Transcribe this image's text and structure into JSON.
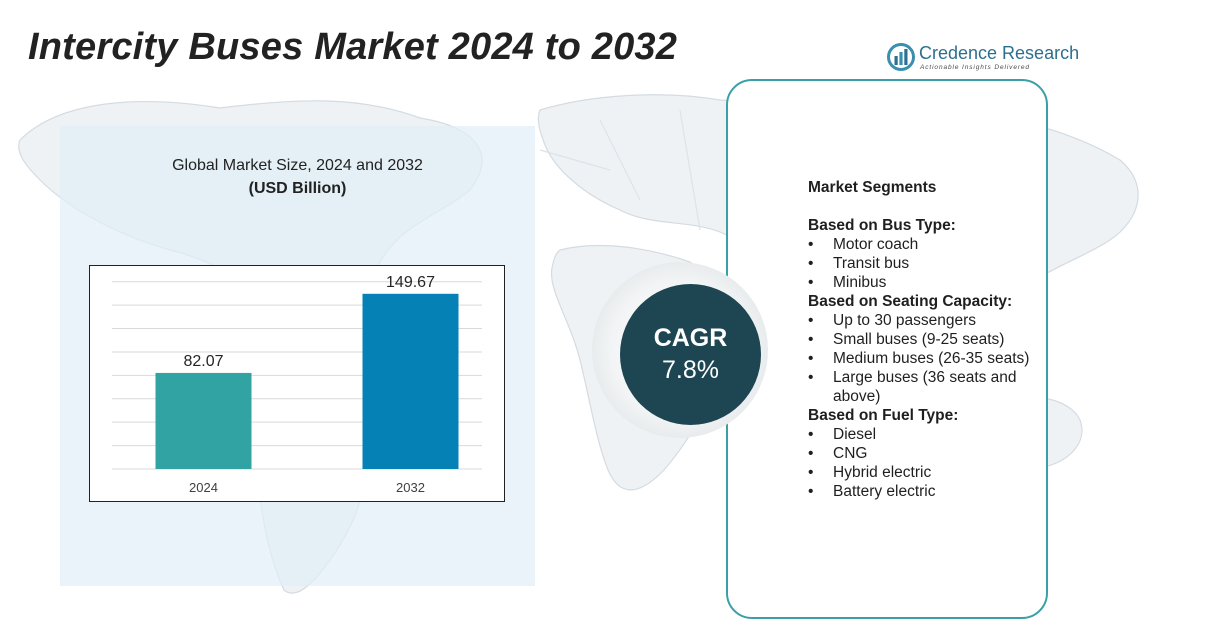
{
  "page": {
    "title": "Intercity Buses Market 2024 to 2032"
  },
  "logo": {
    "name": "Credence Research",
    "tagline": "Actionable Insights Delivered",
    "icon": "bar-chart-circle-icon"
  },
  "chart": {
    "title": "Global Market Size, 2024 and 2032",
    "unit": "(USD Billion)"
  },
  "chart_data": {
    "type": "bar",
    "categories": [
      "2024",
      "2032"
    ],
    "values": [
      82.07,
      149.67
    ],
    "data_labels": [
      "82.07",
      "149.67"
    ],
    "colors": [
      "#32a3a3",
      "#0581b5"
    ],
    "title": "Global Market Size, 2024 and 2032",
    "ylabel": "(USD Billion)",
    "ylim": [
      0,
      170
    ],
    "grid": true
  },
  "cagr": {
    "label": "CAGR",
    "value": "7.8%"
  },
  "segments": {
    "heading": "Market Segments",
    "groups": [
      {
        "title": "Based on Bus Type:",
        "items": [
          "Motor coach",
          "Transit bus",
          "Minibus"
        ]
      },
      {
        "title": "Based on Seating Capacity:",
        "items": [
          "Up to 30 passengers",
          "Small buses (9-25 seats)",
          "Medium buses (26-35 seats)",
          "Large buses (36 seats and above)"
        ]
      },
      {
        "title": "Based on Fuel Type:",
        "items": [
          "Diesel",
          "CNG",
          "Hybrid electric",
          "Battery electric"
        ]
      }
    ]
  },
  "colors": {
    "accent_teal": "#3aa0a8",
    "cagr_dark": "#1d4652",
    "panel_bg": "#e1eef7"
  }
}
